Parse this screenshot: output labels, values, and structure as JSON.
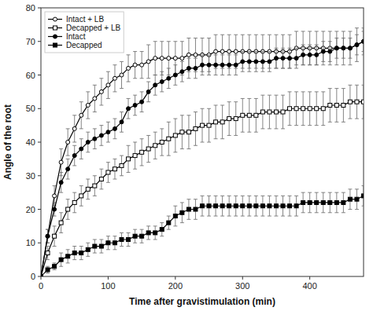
{
  "chart_data": {
    "type": "line",
    "title": "",
    "xlabel": "Time after gravistimulation (min)",
    "ylabel": "Angle of the root",
    "xlim": [
      0,
      480
    ],
    "ylim": [
      0,
      80
    ],
    "xticks": [
      0,
      100,
      200,
      300,
      400
    ],
    "yticks": [
      0,
      10,
      20,
      30,
      40,
      50,
      60,
      70,
      80
    ],
    "grid": false,
    "legend": "upper left",
    "x": [
      0,
      10,
      20,
      30,
      40,
      50,
      60,
      70,
      80,
      90,
      100,
      110,
      120,
      130,
      140,
      150,
      160,
      170,
      180,
      190,
      200,
      210,
      220,
      230,
      240,
      250,
      260,
      270,
      280,
      290,
      300,
      310,
      320,
      330,
      340,
      350,
      360,
      370,
      380,
      390,
      400,
      410,
      420,
      430,
      440,
      450,
      460,
      470,
      480
    ],
    "series": [
      {
        "name": "Intact + LB",
        "color": "#000000",
        "marker": "open-circle",
        "line_style": "solid",
        "values": [
          0,
          12,
          24,
          34,
          40,
          44,
          48,
          51,
          53,
          55,
          57,
          59,
          60,
          62,
          63,
          63,
          64,
          65,
          65,
          65,
          65,
          65,
          66,
          66,
          66,
          66,
          67,
          67,
          67,
          67,
          67,
          67,
          67,
          67,
          67,
          67,
          67,
          67,
          68,
          68,
          68,
          68,
          68,
          68,
          68,
          68,
          68,
          69,
          70
        ],
        "errors": [
          0,
          2,
          3,
          4,
          4,
          4,
          4,
          4,
          4,
          4,
          4,
          4,
          4,
          4,
          4,
          4,
          5,
          5,
          5,
          5,
          5,
          5,
          5,
          5,
          5,
          5,
          5,
          5,
          5,
          5,
          5,
          5,
          5,
          5,
          5,
          5,
          5,
          5,
          5,
          5,
          5,
          5,
          5,
          5,
          5,
          5,
          5,
          5,
          4
        ]
      },
      {
        "name": "Decapped + LB",
        "color": "#000000",
        "marker": "open-square",
        "line_style": "solid",
        "values": [
          0,
          7,
          12,
          16,
          20,
          22,
          24,
          26,
          27,
          29,
          31,
          32,
          33,
          35,
          36,
          37,
          38,
          39,
          40,
          41,
          42,
          43,
          43,
          44,
          45,
          45,
          46,
          46,
          47,
          47,
          48,
          48,
          48,
          49,
          49,
          49,
          49,
          50,
          50,
          50,
          50,
          50,
          50,
          51,
          51,
          51,
          52,
          52,
          52
        ],
        "errors": [
          0,
          2,
          3,
          3,
          3,
          3,
          3,
          3,
          3,
          3,
          3,
          3,
          3,
          4,
          4,
          4,
          4,
          4,
          4,
          5,
          5,
          5,
          5,
          5,
          5,
          5,
          5,
          5,
          5,
          5,
          5,
          5,
          5,
          5,
          5,
          5,
          5,
          5,
          5,
          5,
          5,
          5,
          5,
          5,
          5,
          5,
          5,
          5,
          5
        ]
      },
      {
        "name": "Intact",
        "color": "#000000",
        "marker": "circle",
        "line_style": "solid",
        "values": [
          0,
          12,
          20,
          28,
          32,
          36,
          38,
          40,
          41,
          42,
          43,
          44,
          46,
          50,
          51,
          52,
          55,
          57,
          58,
          59,
          60,
          61,
          62,
          62,
          63,
          63,
          63,
          63,
          63,
          63,
          64,
          64,
          64,
          64,
          64,
          65,
          65,
          65,
          65,
          66,
          66,
          66,
          67,
          67,
          68,
          68,
          68,
          69,
          70
        ],
        "errors": [
          0,
          2,
          2,
          3,
          3,
          3,
          3,
          3,
          3,
          3,
          3,
          3,
          3,
          3,
          3,
          3,
          3,
          3,
          3,
          3,
          3,
          3,
          3,
          3,
          3,
          3,
          3,
          3,
          3,
          3,
          3,
          3,
          3,
          3,
          3,
          3,
          3,
          3,
          3,
          3,
          3,
          3,
          3,
          3,
          3,
          3,
          3,
          3,
          3
        ]
      },
      {
        "name": "Decapped",
        "color": "#000000",
        "marker": "square",
        "line_style": "solid",
        "values": [
          0,
          2,
          3,
          5,
          6,
          7,
          7,
          8,
          9,
          9,
          10,
          10,
          11,
          11,
          12,
          12,
          13,
          13,
          14,
          16,
          18,
          19,
          20,
          20,
          21,
          21,
          21,
          21,
          21,
          21,
          21,
          21,
          21,
          21,
          21,
          21,
          21,
          21,
          21,
          22,
          22,
          22,
          22,
          22,
          22,
          22,
          23,
          23,
          24
        ],
        "errors": [
          0,
          1,
          1,
          2,
          2,
          2,
          2,
          2,
          2,
          2,
          2,
          2,
          2,
          2,
          2,
          2,
          2,
          2,
          2,
          2,
          3,
          3,
          3,
          3,
          3,
          3,
          3,
          3,
          3,
          3,
          3,
          3,
          3,
          3,
          3,
          3,
          3,
          3,
          3,
          3,
          3,
          3,
          3,
          3,
          3,
          3,
          3,
          3,
          3
        ]
      }
    ]
  }
}
